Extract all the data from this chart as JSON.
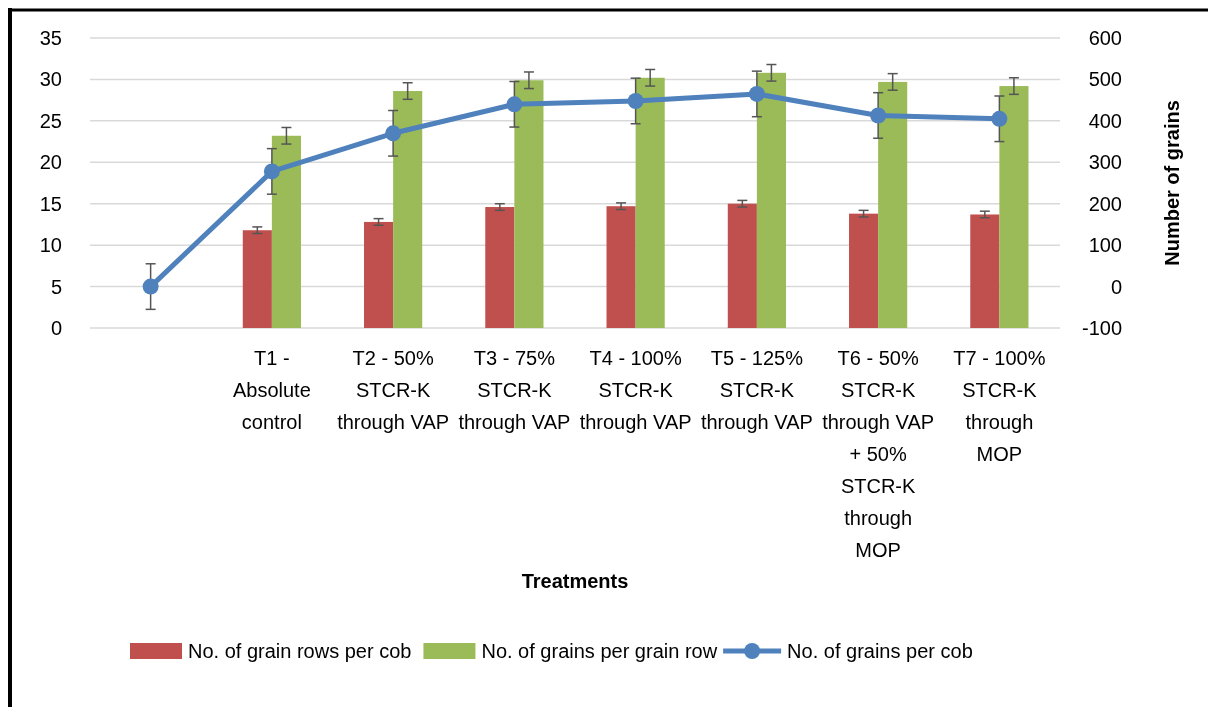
{
  "chart_data": {
    "type": "bar",
    "xlabel": "Treatments",
    "y2label": "Number of grains",
    "categories": [
      null,
      "T1 - Absolute control",
      "T2 - 50% STCR-K through VAP",
      "T3 - 75% STCR-K through VAP",
      "T4 - 100% STCR-K through VAP",
      "T5 - 125% STCR-K through VAP",
      "T6 - 50% STCR-K through VAP + 50% STCR-K through MOP",
      "T7 - 100% STCR-K through MOP"
    ],
    "series": [
      {
        "name": "No. of grain rows per cob",
        "color": "#c0504d",
        "values": [
          null,
          11.8,
          12.8,
          14.6,
          14.7,
          15.0,
          13.8,
          13.7
        ],
        "errors": [
          null,
          0.4,
          0.4,
          0.4,
          0.4,
          0.4,
          0.4,
          0.4
        ]
      },
      {
        "name": "No. of grains per grain row",
        "color": "#9bbb59",
        "values": [
          null,
          23.2,
          28.6,
          29.9,
          30.2,
          30.8,
          29.7,
          29.2
        ],
        "errors": [
          null,
          1,
          1,
          1,
          1,
          1,
          1,
          1
        ]
      },
      {
        "name": "No. of grains per cob",
        "type": "line",
        "axis": "y2",
        "color": "#4f81bd",
        "marker": "circle",
        "values": [
          0,
          278,
          370,
          440,
          448,
          465,
          413,
          405
        ],
        "errors": [
          55,
          55,
          55,
          55,
          55,
          55,
          55,
          55
        ]
      }
    ],
    "ylim": [
      0,
      35
    ],
    "yticks": [
      0,
      5,
      10,
      15,
      20,
      25,
      30,
      35
    ],
    "y2lim": [
      -100,
      600
    ],
    "y2ticks": [
      -100,
      0,
      100,
      200,
      300,
      400,
      500,
      600
    ],
    "grid": "y",
    "legend": "bottom"
  }
}
